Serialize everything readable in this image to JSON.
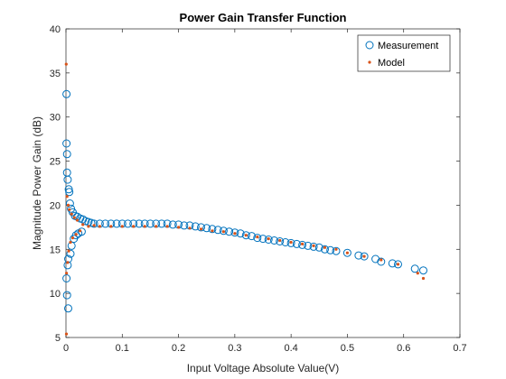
{
  "chart_data": {
    "type": "scatter",
    "title": "Power Gain Transfer Function",
    "xlabel": "Input Voltage Absolute Value(V)",
    "ylabel": "Magnitude Power Gain (dB)",
    "xlim": [
      0,
      0.7
    ],
    "ylim": [
      5,
      40
    ],
    "xticks": [
      "0",
      "0.1",
      "0.2",
      "0.3",
      "0.4",
      "0.5",
      "0.6",
      "0.7"
    ],
    "yticks": [
      "5",
      "10",
      "15",
      "20",
      "25",
      "30",
      "35",
      "40"
    ],
    "grid": false,
    "legend_position": "top-right",
    "series": [
      {
        "name": "Measurement",
        "marker": "circle",
        "color": "#0072BD",
        "x": [
          0.001,
          0.001,
          0.002,
          0.002,
          0.003,
          0.001,
          0.002,
          0.004,
          0.005,
          0.003,
          0.006,
          0.004,
          0.007,
          0.008,
          0.009,
          0.01,
          0.012,
          0.014,
          0.016,
          0.018,
          0.02,
          0.022,
          0.025,
          0.028,
          0.03,
          0.035,
          0.04,
          0.045,
          0.05,
          0.06,
          0.07,
          0.08,
          0.09,
          0.1,
          0.11,
          0.12,
          0.13,
          0.14,
          0.15,
          0.16,
          0.17,
          0.18,
          0.19,
          0.2,
          0.21,
          0.22,
          0.23,
          0.24,
          0.25,
          0.26,
          0.27,
          0.28,
          0.29,
          0.3,
          0.31,
          0.32,
          0.33,
          0.34,
          0.35,
          0.36,
          0.37,
          0.38,
          0.39,
          0.4,
          0.41,
          0.42,
          0.43,
          0.44,
          0.45,
          0.46,
          0.47,
          0.48,
          0.5,
          0.52,
          0.53,
          0.55,
          0.56,
          0.58,
          0.59,
          0.62,
          0.635
        ],
        "y": [
          32.6,
          27.0,
          25.8,
          23.7,
          22.9,
          11.7,
          9.8,
          8.3,
          21.8,
          13.2,
          21.5,
          13.9,
          20.2,
          14.5,
          19.6,
          15.4,
          19.2,
          16.2,
          18.8,
          16.6,
          18.7,
          16.8,
          18.5,
          17.0,
          18.4,
          18.2,
          18.1,
          18.0,
          17.9,
          17.9,
          17.9,
          17.9,
          17.9,
          17.9,
          17.9,
          17.9,
          17.9,
          17.9,
          17.9,
          17.9,
          17.9,
          17.9,
          17.8,
          17.8,
          17.7,
          17.7,
          17.6,
          17.5,
          17.4,
          17.3,
          17.2,
          17.1,
          17.0,
          16.9,
          16.8,
          16.6,
          16.5,
          16.3,
          16.2,
          16.1,
          16.0,
          15.9,
          15.8,
          15.7,
          15.6,
          15.5,
          15.4,
          15.3,
          15.2,
          15.0,
          14.9,
          14.8,
          14.6,
          14.3,
          14.2,
          13.9,
          13.6,
          13.4,
          13.3,
          12.8,
          12.6
        ]
      },
      {
        "name": "Model",
        "marker": "dot",
        "color": "#D95319",
        "x": [
          0.0005,
          0.0008,
          0.001,
          0.002,
          0.003,
          0.004,
          0.005,
          0.006,
          0.008,
          0.01,
          0.012,
          0.015,
          0.018,
          0.02,
          0.025,
          0.03,
          0.04,
          0.05,
          0.06,
          0.08,
          0.1,
          0.12,
          0.14,
          0.16,
          0.18,
          0.2,
          0.22,
          0.24,
          0.26,
          0.28,
          0.3,
          0.32,
          0.34,
          0.36,
          0.38,
          0.4,
          0.42,
          0.44,
          0.46,
          0.48,
          0.5,
          0.53,
          0.56,
          0.59,
          0.625,
          0.635
        ],
        "y": [
          36.0,
          5.4,
          12.3,
          21.0,
          13.5,
          20.0,
          14.8,
          19.5,
          15.8,
          19.0,
          16.3,
          18.6,
          16.7,
          18.3,
          17.1,
          17.8,
          17.6,
          17.7,
          17.6,
          17.6,
          17.6,
          17.6,
          17.6,
          17.6,
          17.6,
          17.5,
          17.4,
          17.3,
          17.1,
          17.0,
          16.8,
          16.6,
          16.4,
          16.2,
          16.0,
          15.8,
          15.6,
          15.4,
          15.2,
          15.0,
          14.6,
          14.2,
          13.8,
          13.3,
          12.3,
          11.7
        ]
      }
    ]
  }
}
